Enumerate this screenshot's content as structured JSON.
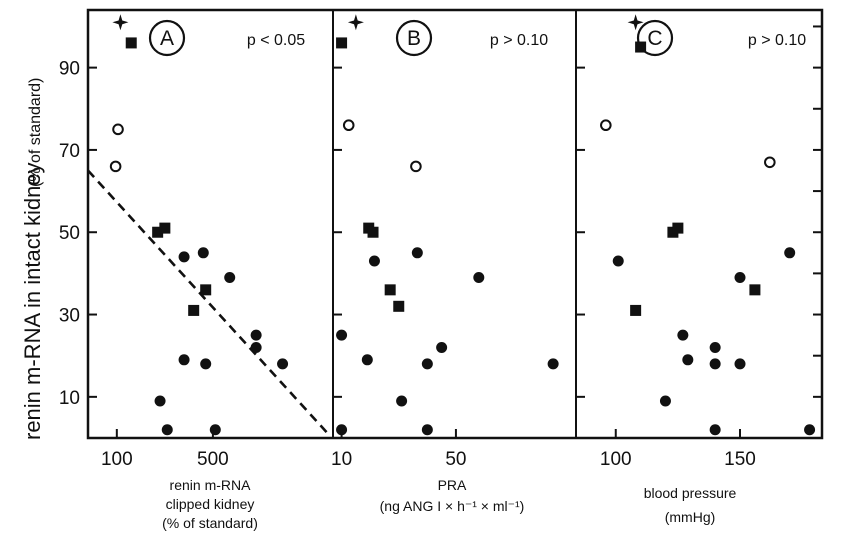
{
  "figure": {
    "y_axis_label": "renin m-RNA in intact kidney",
    "y_axis_unit": "(% of standard)"
  },
  "chart_data": [
    {
      "type": "scatter",
      "panel": "A",
      "annotation": "p < 0.05",
      "xlabel": [
        "renin m-RNA",
        "clipped kidney",
        "(% of standard)"
      ],
      "x_ticks": [
        100,
        500
      ],
      "y_ticks": [
        10,
        30,
        50,
        70,
        90
      ],
      "xlim": [
        -20,
        1000
      ],
      "ylim": [
        0,
        104
      ],
      "regression_line": {
        "style": "dashed",
        "points": [
          [
            -20,
            65
          ],
          [
            980,
            1
          ]
        ]
      },
      "series": [
        {
          "marker": "star",
          "points": [
            [
              115,
              101
            ]
          ]
        },
        {
          "marker": "filled-square",
          "points": [
            [
              160,
              96
            ],
            [
              270,
              50
            ],
            [
              300,
              51
            ],
            [
              420,
              31
            ],
            [
              470,
              36
            ]
          ]
        },
        {
          "marker": "open-circle",
          "points": [
            [
              105,
              75
            ],
            [
              95,
              66
            ]
          ]
        },
        {
          "marker": "filled-circle",
          "points": [
            [
              280,
              9
            ],
            [
              310,
              2
            ],
            [
              380,
              44
            ],
            [
              380,
              19
            ],
            [
              460,
              45
            ],
            [
              470,
              18
            ],
            [
              510,
              2
            ],
            [
              570,
              39
            ],
            [
              680,
              25
            ],
            [
              680,
              22
            ],
            [
              790,
              18
            ]
          ]
        }
      ]
    },
    {
      "type": "scatter",
      "panel": "B",
      "annotation": "p > 0.10",
      "xlabel": [
        "PRA",
        "(ng ANG I × h⁻¹ × ml⁻¹)"
      ],
      "x_ticks": [
        10,
        50
      ],
      "y_ticks": [
        10,
        30,
        50,
        70,
        90
      ],
      "xlim": [
        7,
        92
      ],
      "ylim": [
        0,
        104
      ],
      "series": [
        {
          "marker": "star",
          "points": [
            [
              15,
              101
            ]
          ]
        },
        {
          "marker": "filled-square",
          "points": [
            [
              10,
              96
            ],
            [
              19.5,
              51
            ],
            [
              21,
              50
            ],
            [
              27,
              36
            ],
            [
              30,
              32
            ]
          ]
        },
        {
          "marker": "open-circle",
          "points": [
            [
              12.5,
              76
            ],
            [
              36,
              66
            ]
          ]
        },
        {
          "marker": "filled-circle",
          "points": [
            [
              10,
              25
            ],
            [
              10,
              2
            ],
            [
              19,
              19
            ],
            [
              21.5,
              43
            ],
            [
              31,
              9
            ],
            [
              36.5,
              45
            ],
            [
              40,
              18
            ],
            [
              40,
              2
            ],
            [
              45,
              22
            ],
            [
              58,
              39
            ],
            [
              84,
              18
            ]
          ]
        }
      ]
    },
    {
      "type": "scatter",
      "panel": "C",
      "annotation": "p > 0.10",
      "xlabel": [
        "blood pressure",
        "(mmHg)"
      ],
      "x_ticks": [
        100,
        150
      ],
      "y_ticks": [
        10,
        30,
        50,
        70,
        90
      ],
      "xlim": [
        84,
        183
      ],
      "ylim": [
        0,
        104
      ],
      "series": [
        {
          "marker": "star",
          "points": [
            [
              108,
              101
            ]
          ]
        },
        {
          "marker": "filled-square",
          "points": [
            [
              110,
              95
            ],
            [
              123,
              50
            ],
            [
              125,
              51
            ],
            [
              108,
              31
            ],
            [
              156,
              36
            ]
          ]
        },
        {
          "marker": "open-circle",
          "points": [
            [
              96,
              76
            ],
            [
              162,
              67
            ]
          ]
        },
        {
          "marker": "filled-circle",
          "points": [
            [
              101,
              43
            ],
            [
              120,
              9
            ],
            [
              127,
              25
            ],
            [
              129,
              19
            ],
            [
              140,
              22
            ],
            [
              140,
              18
            ],
            [
              140,
              2
            ],
            [
              150,
              39
            ],
            [
              150,
              18
            ],
            [
              170,
              45
            ],
            [
              178,
              2
            ]
          ]
        }
      ]
    }
  ]
}
